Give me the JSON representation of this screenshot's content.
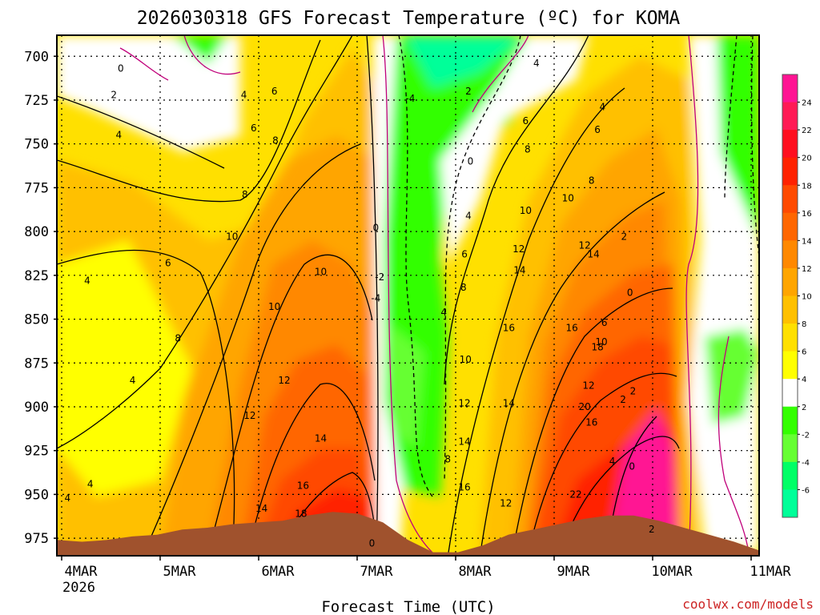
{
  "chart_data": {
    "type": "heatmap",
    "title": "2026030318 GFS Forecast Temperature (ºC) for KOMA",
    "xlabel": "Forecast Time (UTC)",
    "ylabel": "",
    "credit": "coolwx.com/models",
    "x_ticks": [
      "4MAR",
      "5MAR",
      "6MAR",
      "7MAR",
      "8MAR",
      "9MAR",
      "10MAR",
      "11MAR"
    ],
    "x_year": "2026",
    "y_ticks": [
      "700",
      "725",
      "750",
      "775",
      "800",
      "825",
      "850",
      "875",
      "900",
      "925",
      "950",
      "975"
    ],
    "ylim": [
      688,
      985
    ],
    "grid": true,
    "colorbar": {
      "ticks": [
        "24",
        "22",
        "20",
        "18",
        "16",
        "14",
        "12",
        "10",
        "8",
        "6",
        "4",
        "2",
        "-2",
        "-4",
        "-6"
      ],
      "colors": [
        "#ff1493",
        "#ff1a55",
        "#ff0f1f",
        "#ff2200",
        "#ff4a00",
        "#ff6600",
        "#ff8800",
        "#ffa500",
        "#ffc000",
        "#ffe000",
        "#ffff00",
        "#ffffff",
        "#33ff00",
        "#66ff33",
        "#00ff66",
        "#00ff99"
      ],
      "placement": "right"
    },
    "surface_pressure": [
      976,
      977,
      976,
      974,
      973,
      970,
      969,
      967,
      966,
      965,
      962,
      960,
      961,
      966,
      976,
      983,
      983,
      979,
      973,
      970,
      967,
      964,
      962,
      962,
      965,
      969,
      973,
      977,
      982
    ],
    "contour_labels": [
      {
        "t": 0.6,
        "p": 707,
        "text": "0"
      },
      {
        "t": 0.53,
        "p": 722,
        "text": "2"
      },
      {
        "t": 0.58,
        "p": 745,
        "text": "4"
      },
      {
        "t": 0.26,
        "p": 828,
        "text": "4"
      },
      {
        "t": 1.08,
        "p": 818,
        "text": "6"
      },
      {
        "t": 1.85,
        "p": 722,
        "text": "4"
      },
      {
        "t": 2.16,
        "p": 720,
        "text": "6"
      },
      {
        "t": 1.95,
        "p": 741,
        "text": "6"
      },
      {
        "t": 2.17,
        "p": 748,
        "text": "8"
      },
      {
        "t": 1.86,
        "p": 779,
        "text": "8"
      },
      {
        "t": 1.73,
        "p": 803,
        "text": "10"
      },
      {
        "t": 2.16,
        "p": 843,
        "text": "10"
      },
      {
        "t": 2.63,
        "p": 823,
        "text": "10"
      },
      {
        "t": 2.26,
        "p": 885,
        "text": "12"
      },
      {
        "t": 1.91,
        "p": 905,
        "text": "12"
      },
      {
        "t": 2.63,
        "p": 918,
        "text": "14"
      },
      {
        "t": 2.45,
        "p": 945,
        "text": "16"
      },
      {
        "t": 2.03,
        "p": 958,
        "text": "14"
      },
      {
        "t": 2.43,
        "p": 961,
        "text": "18"
      },
      {
        "t": 1.18,
        "p": 861,
        "text": "8"
      },
      {
        "t": 0.72,
        "p": 885,
        "text": "4"
      },
      {
        "t": 0.29,
        "p": 944,
        "text": "4"
      },
      {
        "t": 0.06,
        "p": 952,
        "text": "4"
      },
      {
        "t": 3.19,
        "p": 798,
        "text": "0"
      },
      {
        "t": 3.23,
        "p": 826,
        "text": "-2"
      },
      {
        "t": 3.19,
        "p": 838,
        "text": "-4"
      },
      {
        "t": 3.54,
        "p": 724,
        "text": "-4"
      },
      {
        "t": 3.15,
        "p": 978,
        "text": "0"
      },
      {
        "t": 4.15,
        "p": 760,
        "text": "0"
      },
      {
        "t": 4.13,
        "p": 720,
        "text": "2"
      },
      {
        "t": 4.13,
        "p": 791,
        "text": "4"
      },
      {
        "t": 3.88,
        "p": 846,
        "text": "4"
      },
      {
        "t": 4.09,
        "p": 813,
        "text": "6"
      },
      {
        "t": 4.08,
        "p": 832,
        "text": "8"
      },
      {
        "t": 4.1,
        "p": 873,
        "text": "10"
      },
      {
        "t": 4.09,
        "p": 898,
        "text": "12"
      },
      {
        "t": 4.09,
        "p": 920,
        "text": "14"
      },
      {
        "t": 4.09,
        "p": 946,
        "text": "16"
      },
      {
        "t": 3.92,
        "p": 930,
        "text": "8"
      },
      {
        "t": 4.51,
        "p": 955,
        "text": "12"
      },
      {
        "t": 4.54,
        "p": 898,
        "text": "14"
      },
      {
        "t": 4.54,
        "p": 855,
        "text": "16"
      },
      {
        "t": 4.65,
        "p": 822,
        "text": "14"
      },
      {
        "t": 4.64,
        "p": 810,
        "text": "12"
      },
      {
        "t": 4.71,
        "p": 788,
        "text": "10"
      },
      {
        "t": 4.73,
        "p": 753,
        "text": "8"
      },
      {
        "t": 4.71,
        "p": 737,
        "text": "6"
      },
      {
        "t": 4.82,
        "p": 704,
        "text": "4"
      },
      {
        "t": 5.18,
        "p": 855,
        "text": "16"
      },
      {
        "t": 5.22,
        "p": 950,
        "text": "22"
      },
      {
        "t": 5.31,
        "p": 900,
        "text": "20"
      },
      {
        "t": 5.38,
        "p": 909,
        "text": "16"
      },
      {
        "t": 5.35,
        "p": 888,
        "text": "12"
      },
      {
        "t": 5.44,
        "p": 866,
        "text": "18"
      },
      {
        "t": 5.4,
        "p": 813,
        "text": "14"
      },
      {
        "t": 5.31,
        "p": 808,
        "text": "12"
      },
      {
        "t": 5.14,
        "p": 781,
        "text": "10"
      },
      {
        "t": 5.38,
        "p": 771,
        "text": "8"
      },
      {
        "t": 5.44,
        "p": 742,
        "text": "6"
      },
      {
        "t": 5.49,
        "p": 729,
        "text": "4"
      },
      {
        "t": 5.51,
        "p": 852,
        "text": "6"
      },
      {
        "t": 5.48,
        "p": 863,
        "text": "10"
      },
      {
        "t": 5.71,
        "p": 803,
        "text": "2"
      },
      {
        "t": 5.77,
        "p": 835,
        "text": "0"
      },
      {
        "t": 5.7,
        "p": 896,
        "text": "2"
      },
      {
        "t": 5.8,
        "p": 891,
        "text": "2"
      },
      {
        "t": 5.59,
        "p": 931,
        "text": "4"
      },
      {
        "t": 5.79,
        "p": 934,
        "text": "0"
      },
      {
        "t": 5.99,
        "p": 970,
        "text": "2"
      }
    ]
  }
}
